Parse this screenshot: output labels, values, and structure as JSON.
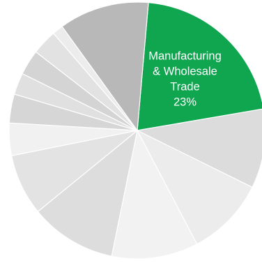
{
  "chart_data": {
    "type": "pie",
    "categories": [
      "Manufacturing & Wholesale Trade",
      "",
      "",
      "",
      "",
      "",
      "",
      "",
      "",
      "",
      "",
      "",
      ""
    ],
    "values": [
      23,
      11,
      11,
      12,
      12,
      8.5,
      4.5,
      4,
      3,
      3.5,
      3.5,
      1.5,
      12.5
    ],
    "start_angle_deg": -85,
    "colors": [
      "#0fa64f",
      "#dcdcdc",
      "#ececec",
      "#f2f2f2",
      "#dddddd",
      "#e3e3e3",
      "#f1f1f1",
      "#d6d6d6",
      "#e0e0e0",
      "#d4d4d4",
      "#e2e2e2",
      "#ececec",
      "#b8b8b8"
    ],
    "labels": [
      {
        "slice": 0,
        "lines": [
          "Manufacturing",
          "& Wholesale",
          "Trade",
          "23%"
        ]
      }
    ]
  }
}
